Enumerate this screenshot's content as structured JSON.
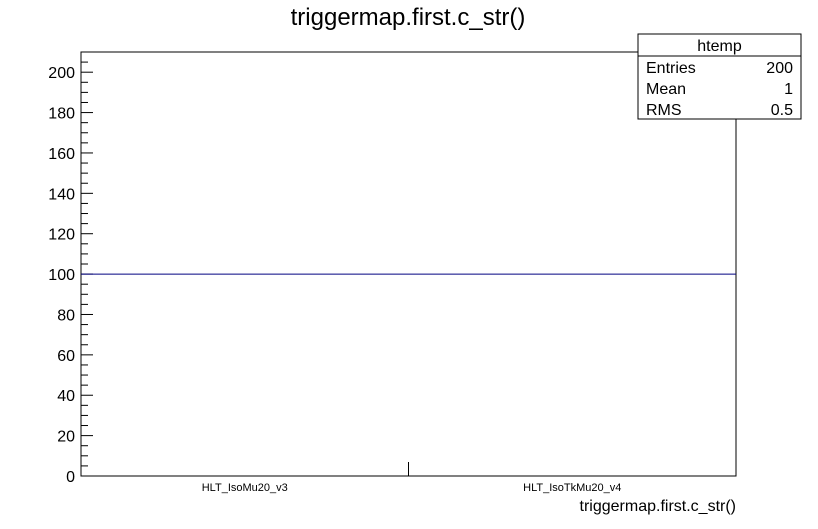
{
  "chart_data": {
    "type": "bar",
    "title": "triggermap.first.c_str()",
    "xlabel": "triggermap.first.c_str()",
    "ylabel": "",
    "categories": [
      "HLT_IsoMu20_v3",
      "HLT_IsoTkMu20_v4"
    ],
    "values": [
      100,
      100
    ],
    "ylim": [
      0,
      210
    ],
    "y_major_ticks": [
      0,
      20,
      40,
      60,
      80,
      100,
      120,
      140,
      160,
      180,
      200
    ],
    "y_minor_step": 5,
    "grid": false,
    "legend": "none",
    "line_color": "#000080"
  },
  "stats_box": {
    "title": "htemp",
    "placement": "top-right",
    "rows": [
      {
        "label": "Entries",
        "value": "200"
      },
      {
        "label": "Mean",
        "value": "1"
      },
      {
        "label": "RMS",
        "value": "0.5"
      }
    ]
  }
}
